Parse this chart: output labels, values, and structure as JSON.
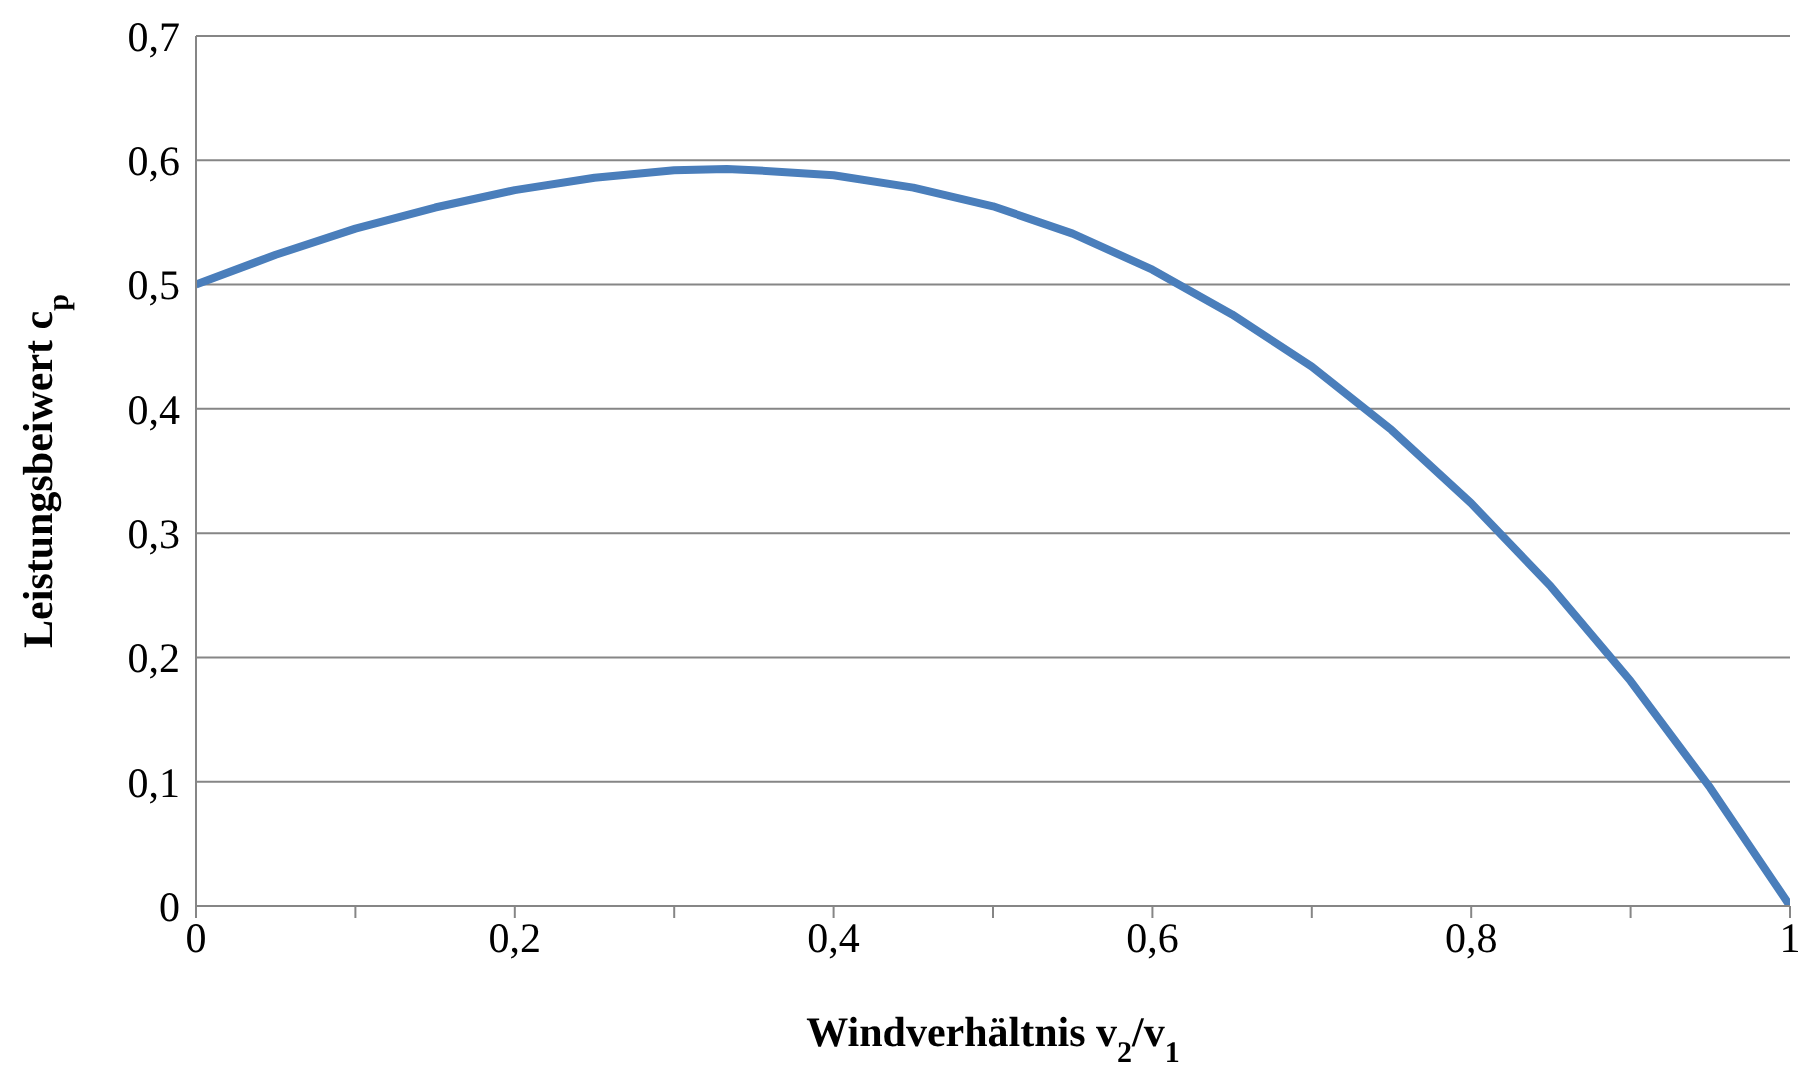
{
  "chart_data": {
    "type": "line",
    "xlabel": "Windverhältnis v$_{2}$/v$_{1}$",
    "ylabel": "Leistungsbeiwert c$_{p}$",
    "x": [
      0,
      0.05,
      0.1,
      0.15,
      0.2,
      0.25,
      0.3,
      0.333,
      0.35,
      0.4,
      0.45,
      0.5,
      0.55,
      0.6,
      0.65,
      0.7,
      0.75,
      0.8,
      0.85,
      0.9,
      0.95,
      1
    ],
    "series": [
      {
        "color": "#4a7ebb",
        "values": [
          0.5,
          0.524,
          0.545,
          0.562,
          0.576,
          0.586,
          0.592,
          0.593,
          0.592,
          0.588,
          0.578,
          0.563,
          0.541,
          0.512,
          0.476,
          0.434,
          0.383,
          0.324,
          0.257,
          0.181,
          0.095,
          0
        ]
      }
    ],
    "xlim": [
      0,
      1
    ],
    "xticks": [
      {
        "value": 0,
        "label": "0"
      },
      {
        "value": 0.1,
        "label": null
      },
      {
        "value": 0.2,
        "label": "0,2"
      },
      {
        "value": 0.3,
        "label": null
      },
      {
        "value": 0.4,
        "label": "0,4"
      },
      {
        "value": 0.5,
        "label": null
      },
      {
        "value": 0.6,
        "label": "0,6"
      },
      {
        "value": 0.7,
        "label": null
      },
      {
        "value": 0.8,
        "label": "0,8"
      },
      {
        "value": 0.9,
        "label": null
      },
      {
        "value": 1,
        "label": "1"
      }
    ],
    "ylim": [
      0,
      0.7
    ],
    "yticks": [
      {
        "value": 0,
        "label": "0"
      },
      {
        "value": 0.1,
        "label": "0,1"
      },
      {
        "value": 0.2,
        "label": "0,2"
      },
      {
        "value": 0.3,
        "label": "0,3"
      },
      {
        "value": 0.4,
        "label": "0,4"
      },
      {
        "value": 0.5,
        "label": "0,5"
      },
      {
        "value": 0.6,
        "label": "0,6"
      },
      {
        "value": 0.7,
        "label": "0,7"
      }
    ],
    "grid": "y",
    "legend": false,
    "marker": "none",
    "line_style": "solid"
  }
}
